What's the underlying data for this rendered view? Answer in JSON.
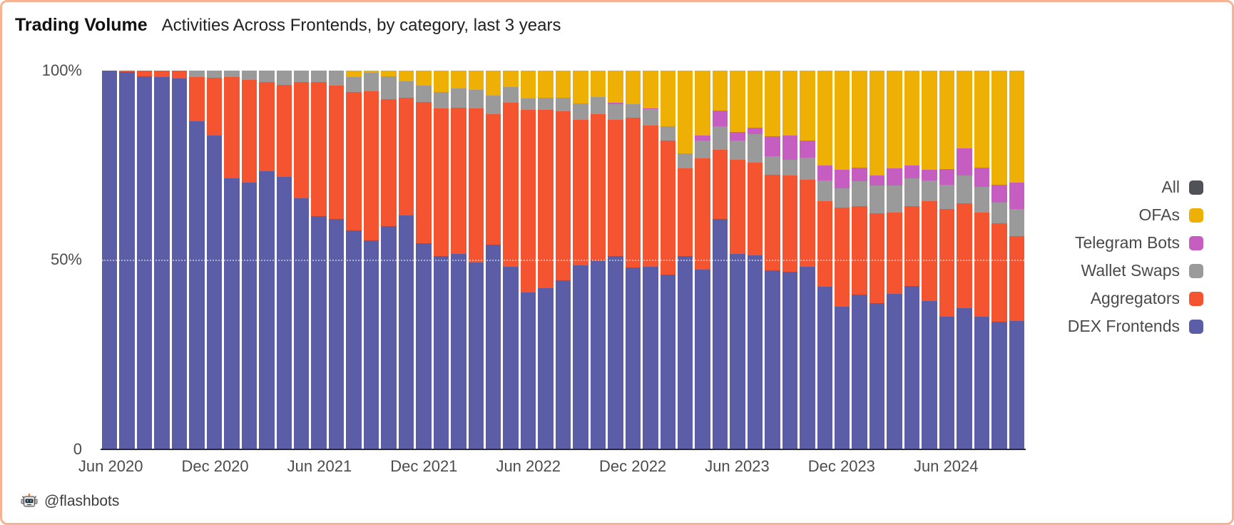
{
  "title": {
    "main": "Trading Volume",
    "subtitle": "Activities Across Frontends, by category, last 3 years"
  },
  "attribution": {
    "handle": "@flashbots",
    "icon": "flashbots-robot-icon"
  },
  "y_axis": {
    "ticks": [
      "100%",
      "50%",
      "0"
    ]
  },
  "legend": [
    {
      "label": "All",
      "color": "#4f5257"
    },
    {
      "label": "OFAs",
      "color": "#eeb005"
    },
    {
      "label": "Telegram Bots",
      "color": "#c65ec2"
    },
    {
      "label": "Wallet Swaps",
      "color": "#9a9a9a"
    },
    {
      "label": "Aggregators",
      "color": "#f4542f"
    },
    {
      "label": "DEX Frontends",
      "color": "#5b5ea6"
    }
  ],
  "chart_data": {
    "type": "bar",
    "stacked": true,
    "unit": "percent share of monthly trading volume",
    "ylim": [
      0,
      100
    ],
    "grid": "dotted line at 50%",
    "legend_position": "right",
    "x": [
      "Jun 2020",
      "Jul 2020",
      "Aug 2020",
      "Sep 2020",
      "Oct 2020",
      "Nov 2020",
      "Dec 2020",
      "Jan 2021",
      "Feb 2021",
      "Mar 2021",
      "Apr 2021",
      "May 2021",
      "Jun 2021",
      "Jul 2021",
      "Aug 2021",
      "Sep 2021",
      "Oct 2021",
      "Nov 2021",
      "Dec 2021",
      "Jan 2022",
      "Feb 2022",
      "Mar 2022",
      "Apr 2022",
      "May 2022",
      "Jun 2022",
      "Jul 2022",
      "Aug 2022",
      "Sep 2022",
      "Oct 2022",
      "Nov 2022",
      "Dec 2022",
      "Jan 2023",
      "Feb 2023",
      "Mar 2023",
      "Apr 2023",
      "May 2023",
      "Jun 2023",
      "Jul 2023",
      "Aug 2023",
      "Sep 2023",
      "Oct 2023",
      "Nov 2023",
      "Dec 2023",
      "Jan 2024",
      "Feb 2024",
      "Mar 2024",
      "Apr 2024",
      "May 2024",
      "Jun 2024",
      "Jul 2024",
      "Aug 2024",
      "Sep 2024",
      "Oct 2024"
    ],
    "x_tick_labels": [
      {
        "label": "Jun 2020",
        "index": 0
      },
      {
        "label": "Dec 2020",
        "index": 6
      },
      {
        "label": "Jun 2021",
        "index": 12
      },
      {
        "label": "Dec 2021",
        "index": 18
      },
      {
        "label": "Jun 2022",
        "index": 24
      },
      {
        "label": "Dec 2022",
        "index": 30
      },
      {
        "label": "Jun 2023",
        "index": 36
      },
      {
        "label": "Dec 2023",
        "index": 42
      },
      {
        "label": "Jun 2024",
        "index": 48
      }
    ],
    "series": [
      {
        "name": "DEX Frontends",
        "color": "#5b5ea6",
        "values": [
          100,
          99.7,
          98.5,
          98.4,
          97.9,
          86.6,
          82.8,
          71.5,
          70.5,
          73.5,
          72.0,
          66.3,
          61.5,
          60.8,
          57.8,
          55.1,
          58.9,
          61.7,
          54.5,
          51.1,
          51.6,
          49.4,
          54.0,
          48.3,
          41.5,
          42.5,
          44.6,
          48.6,
          49.9,
          51.1,
          48.0,
          48.3,
          46.1,
          51.1,
          47.5,
          60.9,
          51.6,
          51.3,
          47.2,
          46.9,
          48.2,
          43.0,
          37.6,
          40.9,
          38.7,
          41.1,
          43.2,
          39.2,
          35.0,
          37.3,
          35.0,
          33.7,
          33.9
        ]
      },
      {
        "name": "Aggregators",
        "color": "#f4542f",
        "values": [
          0,
          0.3,
          1.5,
          1.6,
          2.1,
          11.7,
          15.3,
          26.8,
          27.1,
          23.5,
          24.2,
          30.7,
          35.5,
          35.3,
          36.5,
          39.5,
          33.6,
          31.1,
          37.2,
          38.9,
          38.7,
          40.6,
          34.6,
          43.2,
          48.1,
          47.1,
          44.6,
          38.4,
          38.7,
          35.9,
          39.5,
          37.2,
          35.4,
          23.1,
          29.3,
          18.2,
          24.9,
          24.4,
          25.3,
          25.5,
          22.9,
          22.6,
          26.3,
          23.4,
          23.6,
          21.4,
          21.1,
          26.4,
          28.5,
          27.7,
          27.6,
          26.0,
          22.5
        ]
      },
      {
        "name": "Wallet Swaps",
        "color": "#9a9a9a",
        "values": [
          0,
          0,
          0,
          0,
          0,
          1.7,
          1.9,
          1.7,
          2.4,
          3.0,
          3.8,
          3.0,
          3.0,
          3.9,
          4.0,
          4.8,
          6.0,
          4.4,
          4.3,
          4.3,
          5.0,
          5.0,
          4.9,
          4.2,
          3.0,
          3.2,
          3.6,
          4.4,
          4.4,
          4.2,
          3.6,
          4.3,
          3.8,
          4.0,
          4.7,
          6.3,
          5.0,
          7.5,
          5.0,
          4.1,
          6.0,
          5.4,
          5.0,
          6.5,
          7.3,
          7.1,
          7.2,
          5.4,
          6.3,
          7.3,
          6.8,
          5.5,
          7.1
        ]
      },
      {
        "name": "Telegram Bots",
        "color": "#c65ec2",
        "values": [
          0,
          0,
          0,
          0,
          0,
          0,
          0,
          0,
          0,
          0,
          0,
          0,
          0,
          0,
          0,
          0,
          0,
          0,
          0,
          0,
          0,
          0,
          0,
          0,
          0,
          0,
          0,
          0,
          0,
          0.4,
          0,
          0.3,
          0,
          0,
          1.3,
          4.1,
          2.3,
          1.8,
          5.1,
          6.3,
          4.4,
          4.0,
          4.9,
          3.6,
          2.7,
          4.6,
          3.5,
          2.8,
          4.2,
          7.1,
          5.0,
          4.6,
          6.9
        ]
      },
      {
        "name": "OFAs",
        "color": "#eeb005",
        "values": [
          0,
          0,
          0,
          0,
          0,
          0,
          0,
          0,
          0,
          0,
          0,
          0,
          0,
          0,
          1.7,
          0.6,
          1.5,
          2.8,
          4.0,
          5.7,
          4.7,
          5.0,
          6.5,
          4.3,
          7.4,
          7.2,
          7.2,
          8.6,
          7.0,
          8.4,
          8.9,
          9.9,
          14.7,
          21.8,
          17.2,
          10.5,
          16.2,
          15.0,
          17.4,
          17.2,
          18.5,
          25.0,
          26.2,
          25.6,
          27.7,
          25.8,
          25.0,
          26.2,
          26.0,
          20.6,
          25.6,
          30.2,
          29.6
        ]
      },
      {
        "name": "All",
        "color": "#4f5257",
        "legend_only": true,
        "values": []
      }
    ]
  }
}
